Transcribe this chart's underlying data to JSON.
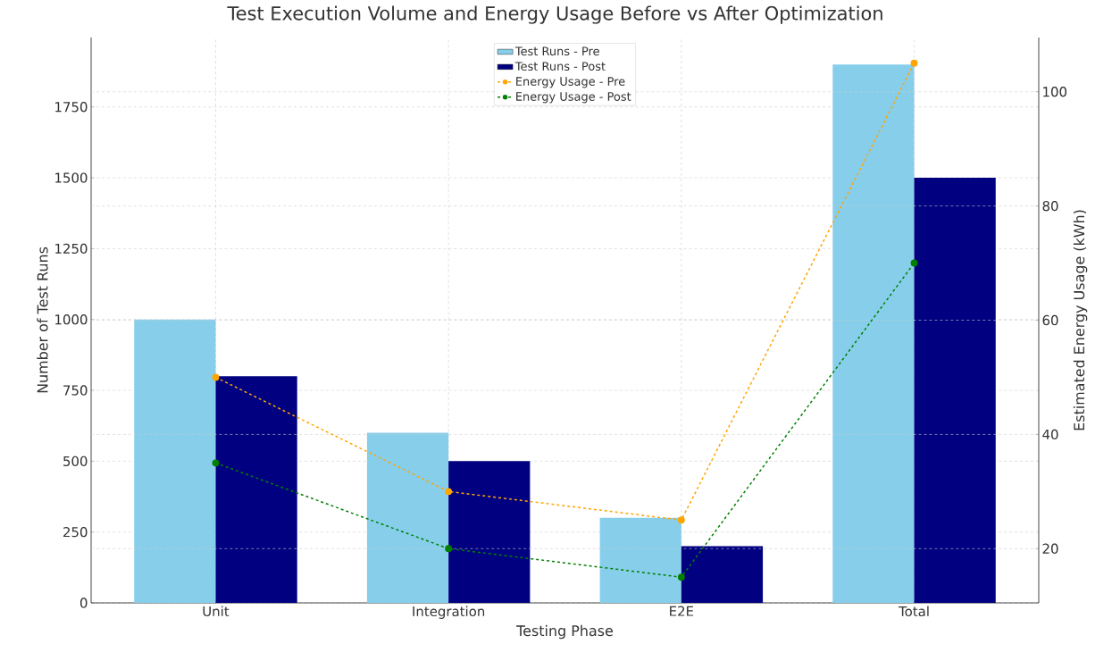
{
  "chart_data": {
    "type": "bar",
    "title": "Test Execution Volume and Energy Usage Before vs After Optimization",
    "xlabel": "Testing Phase",
    "ylabel": "Number of Test Runs",
    "y2label": "Estimated Energy Usage (kWh)",
    "categories": [
      "Unit",
      "Integration",
      "E2E",
      "Total"
    ],
    "series": [
      {
        "name": "Test Runs - Pre",
        "color": "#87ceeb",
        "values": [
          1000,
          600,
          300,
          1900
        ]
      },
      {
        "name": "Test Runs - Post",
        "color": "#000080",
        "values": [
          800,
          500,
          200,
          1500
        ]
      },
      {
        "name": "Energy Usage - Pre",
        "type": "line",
        "axis": "y2",
        "color": "#ffa500",
        "values": [
          50,
          30,
          25,
          105
        ]
      },
      {
        "name": "Energy Usage - Post",
        "type": "line",
        "axis": "y2",
        "color": "#008000",
        "values": [
          35,
          20,
          15,
          70
        ]
      }
    ],
    "ylim": [
      0,
      1995
    ],
    "yticks": [
      0,
      250,
      500,
      750,
      1000,
      1250,
      1500,
      1750
    ],
    "y2lim": [
      10.5,
      109.5
    ],
    "y2ticks": [
      20,
      40,
      60,
      80,
      100
    ],
    "grid": true,
    "legend": "top",
    "marker": "circle",
    "line_style": "dashed"
  }
}
